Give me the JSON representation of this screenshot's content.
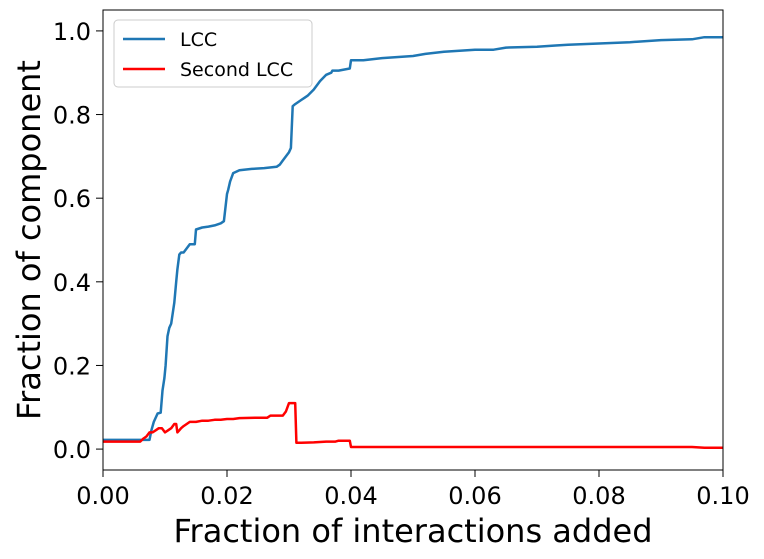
{
  "chart_data": {
    "type": "line",
    "title": "",
    "xlabel": "Fraction of interactions added",
    "ylabel": "Fraction of component",
    "xlim": [
      0.0,
      0.1
    ],
    "ylim": [
      -0.05,
      1.05
    ],
    "xticks": [
      0.0,
      0.02,
      0.04,
      0.06,
      0.08,
      0.1
    ],
    "xtick_labels": [
      "0.00",
      "0.02",
      "0.04",
      "0.06",
      "0.08",
      "0.10"
    ],
    "yticks": [
      0.0,
      0.2,
      0.4,
      0.6,
      0.8,
      1.0
    ],
    "ytick_labels": [
      "0.0",
      "0.2",
      "0.4",
      "0.6",
      "0.8",
      "1.0"
    ],
    "grid": false,
    "legend_position": "top-left",
    "series": [
      {
        "name": "LCC",
        "color": "#1f77b4",
        "x": [
          0.0,
          0.0075,
          0.0078,
          0.0082,
          0.0088,
          0.0093,
          0.0096,
          0.0099,
          0.0101,
          0.0104,
          0.0107,
          0.011,
          0.0115,
          0.0118,
          0.012,
          0.0123,
          0.0126,
          0.013,
          0.0135,
          0.014,
          0.0148,
          0.015,
          0.016,
          0.017,
          0.018,
          0.019,
          0.0195,
          0.02,
          0.0202,
          0.0205,
          0.021,
          0.022,
          0.024,
          0.026,
          0.028,
          0.0285,
          0.029,
          0.0295,
          0.03,
          0.0303,
          0.0306,
          0.031,
          0.0315,
          0.032,
          0.0325,
          0.033,
          0.034,
          0.035,
          0.036,
          0.0368,
          0.037,
          0.038,
          0.0398,
          0.04,
          0.042,
          0.045,
          0.05,
          0.052,
          0.055,
          0.06,
          0.063,
          0.065,
          0.07,
          0.073,
          0.075,
          0.08,
          0.085,
          0.09,
          0.095,
          0.097,
          0.1
        ],
        "y": [
          0.022,
          0.022,
          0.045,
          0.065,
          0.085,
          0.087,
          0.14,
          0.17,
          0.2,
          0.27,
          0.29,
          0.3,
          0.35,
          0.4,
          0.43,
          0.465,
          0.47,
          0.47,
          0.48,
          0.49,
          0.49,
          0.525,
          0.53,
          0.532,
          0.535,
          0.54,
          0.545,
          0.61,
          0.62,
          0.64,
          0.66,
          0.667,
          0.67,
          0.672,
          0.675,
          0.68,
          0.69,
          0.7,
          0.71,
          0.72,
          0.82,
          0.825,
          0.83,
          0.835,
          0.84,
          0.845,
          0.86,
          0.88,
          0.895,
          0.9,
          0.905,
          0.905,
          0.91,
          0.93,
          0.93,
          0.935,
          0.94,
          0.945,
          0.95,
          0.955,
          0.955,
          0.96,
          0.962,
          0.965,
          0.967,
          0.97,
          0.973,
          0.978,
          0.98,
          0.985,
          0.985
        ]
      },
      {
        "name": "Second LCC",
        "color": "#ff0000",
        "x": [
          0.0,
          0.006,
          0.0065,
          0.007,
          0.0075,
          0.008,
          0.0085,
          0.009,
          0.0095,
          0.01,
          0.0105,
          0.011,
          0.0115,
          0.0118,
          0.012,
          0.0123,
          0.0126,
          0.013,
          0.0135,
          0.014,
          0.015,
          0.016,
          0.017,
          0.018,
          0.019,
          0.02,
          0.021,
          0.022,
          0.025,
          0.0265,
          0.027,
          0.028,
          0.029,
          0.0295,
          0.03,
          0.031,
          0.0312,
          0.032,
          0.034,
          0.036,
          0.0375,
          0.038,
          0.0398,
          0.04,
          0.05,
          0.06,
          0.07,
          0.08,
          0.09,
          0.095,
          0.097,
          0.1
        ],
        "y": [
          0.018,
          0.018,
          0.025,
          0.03,
          0.04,
          0.04,
          0.045,
          0.05,
          0.05,
          0.04,
          0.045,
          0.05,
          0.06,
          0.06,
          0.04,
          0.045,
          0.05,
          0.055,
          0.06,
          0.065,
          0.065,
          0.068,
          0.068,
          0.07,
          0.07,
          0.072,
          0.072,
          0.074,
          0.075,
          0.075,
          0.08,
          0.08,
          0.08,
          0.09,
          0.11,
          0.11,
          0.015,
          0.015,
          0.016,
          0.018,
          0.018,
          0.02,
          0.02,
          0.005,
          0.005,
          0.005,
          0.005,
          0.005,
          0.005,
          0.005,
          0.003,
          0.003
        ]
      }
    ]
  }
}
